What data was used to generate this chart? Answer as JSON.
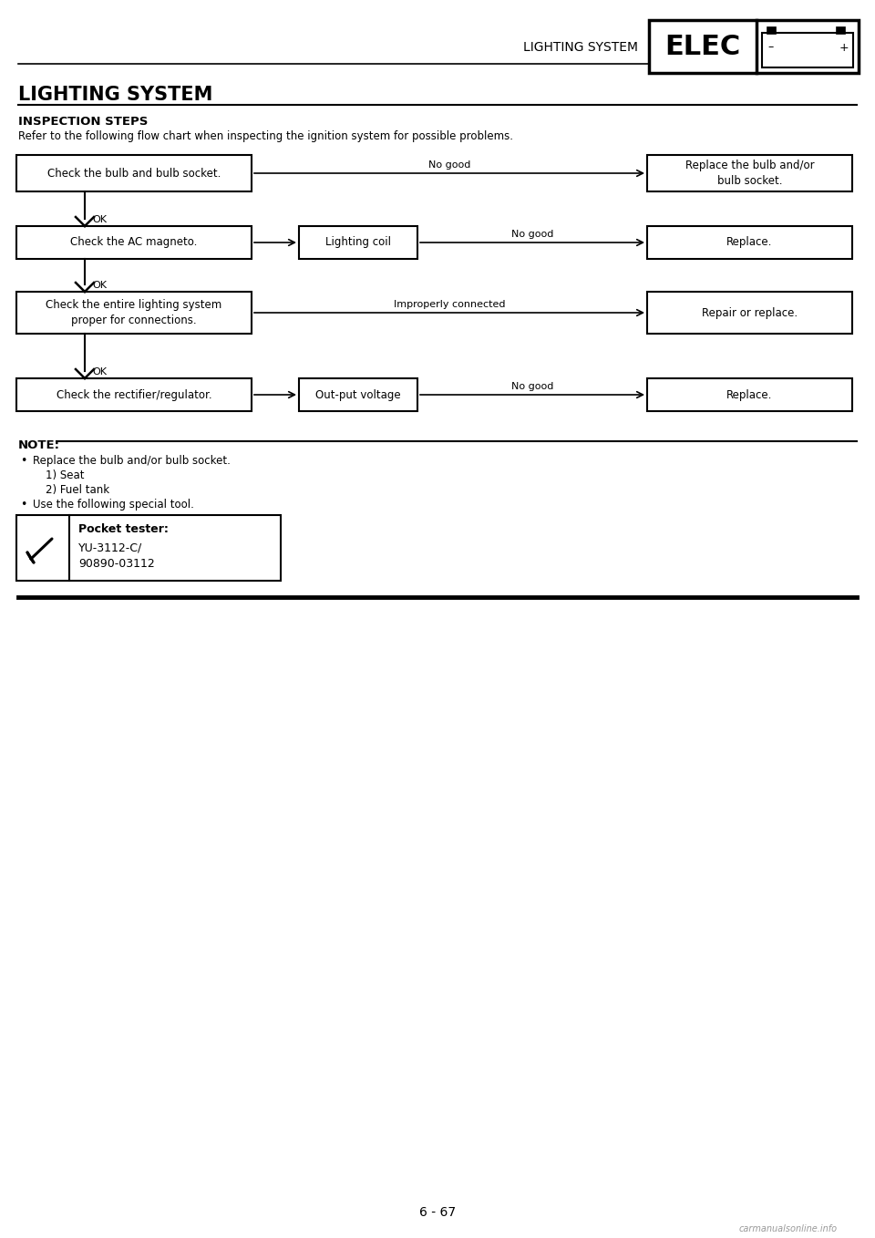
{
  "title": "LIGHTING SYSTEM",
  "subtitle": "INSPECTION STEPS",
  "description": "Refer to the following flow chart when inspecting the ignition system for possible problems.",
  "header_label": "LIGHTING SYSTEM",
  "elec_label": "ELEC",
  "page_number": "6 - 67",
  "background_color": "#ffffff",
  "box_color": "#000000",
  "text_color": "#000000",
  "note_title": "NOTE:",
  "note_items": [
    "Replace the bulb and/or bulb socket.",
    "   1) Seat",
    "   2) Fuel tank",
    "Use the following special tool."
  ],
  "tool_label_bold": "Pocket tester:",
  "tool_label_line2": "YU-3112-C/",
  "tool_label_line3": "90890-03112",
  "watermark": "carmanualsonline.info"
}
